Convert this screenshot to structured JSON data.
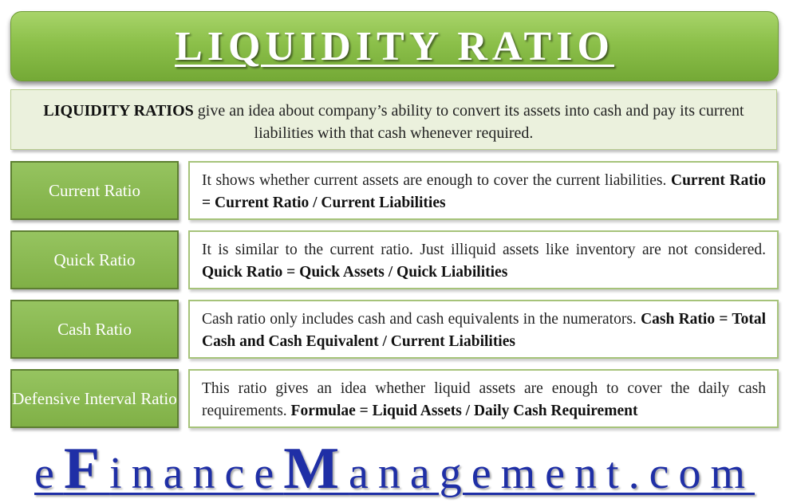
{
  "title": "LIQUIDITY RATIO",
  "intro": {
    "bold": "LIQUIDITY RATIOS",
    "text": " give an idea about company’s ability to convert its assets into cash and pay its current liabilities with that cash whenever required."
  },
  "ratios": [
    {
      "label": "Current Ratio",
      "desc": "It shows whether current assets are enough to cover the current liabilities. ",
      "formula": "Current Ratio = Current Ratio / Current Liabilities"
    },
    {
      "label": "Quick Ratio",
      "desc": "It is similar to the current ratio. Just illiquid assets like inventory are not considered. ",
      "formula": "Quick Ratio = Quick Assets / Quick Liabilities"
    },
    {
      "label": "Cash Ratio",
      "desc": "Cash ratio only includes cash and cash equivalents in the numerators. ",
      "formula": "Cash Ratio = Total Cash and Cash Equivalent / Current Liabilities"
    },
    {
      "label": "Defensive Interval Ratio",
      "desc": "This ratio gives an idea whether liquid assets are enough to cover the daily cash requirements. ",
      "formula": "Formulae = Liquid Assets / Daily Cash Requirement"
    }
  ],
  "watermark": {
    "part1": "e",
    "part2": "F",
    "part3": "inance",
    "part4": "M",
    "part5": "anagement.com"
  },
  "colors": {
    "banner_green": "#8cc04a",
    "label_green": "#80b046",
    "intro_bg": "#ebf1dd",
    "watermark_blue": "#1f2fa6"
  }
}
